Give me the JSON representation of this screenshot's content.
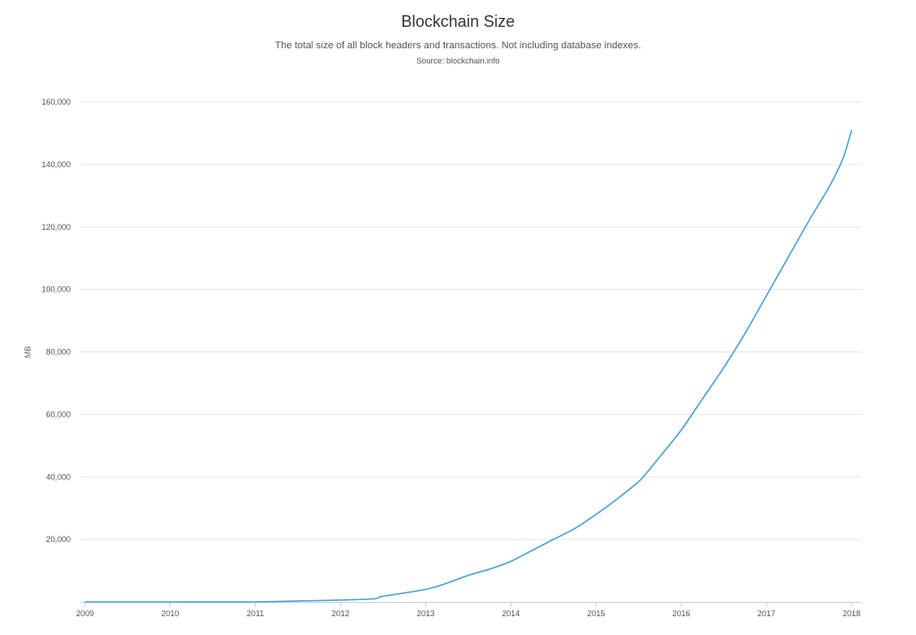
{
  "chart_data": {
    "type": "line",
    "title": "Blockchain Size",
    "subtitle": "The total size of all block headers and transactions. Not including database indexes.",
    "source": "Source: blockchain.info",
    "xlabel": "",
    "ylabel": "MB",
    "xlim": [
      2009.0,
      2018.0
    ],
    "ylim": [
      0,
      160000
    ],
    "grid": true,
    "legend": "none",
    "line_color": "#4aa3d6",
    "y_ticks": [
      {
        "value": 20000,
        "label": "20,000"
      },
      {
        "value": 40000,
        "label": "40,000"
      },
      {
        "value": 60000,
        "label": "60,000"
      },
      {
        "value": 80000,
        "label": "80,000"
      },
      {
        "value": 100000,
        "label": "100,000"
      },
      {
        "value": 120000,
        "label": "120,000"
      },
      {
        "value": 140000,
        "label": "140,000"
      },
      {
        "value": 160000,
        "label": "160,000"
      }
    ],
    "x_ticks": [
      {
        "value": 2009,
        "label": "2009"
      },
      {
        "value": 2010,
        "label": "2010"
      },
      {
        "value": 2011,
        "label": "2011"
      },
      {
        "value": 2012,
        "label": "2012"
      },
      {
        "value": 2013,
        "label": "2013"
      },
      {
        "value": 2014,
        "label": "2014"
      },
      {
        "value": 2015,
        "label": "2015"
      },
      {
        "value": 2016,
        "label": "2016"
      },
      {
        "value": 2017,
        "label": "2017"
      },
      {
        "value": 2018,
        "label": "2018"
      }
    ],
    "x": [
      2009.0,
      2010.0,
      2011.0,
      2011.5,
      2012.0,
      2012.4,
      2012.5,
      2013.0,
      2013.25,
      2013.5,
      2013.75,
      2014.0,
      2014.25,
      2014.5,
      2014.75,
      2015.0,
      2015.25,
      2015.5,
      2015.6,
      2015.75,
      2016.0,
      2016.25,
      2016.5,
      2016.75,
      2017.0,
      2017.25,
      2017.5,
      2017.75,
      2017.9,
      2018.0
    ],
    "y": [
      0,
      0,
      0,
      300,
      600,
      1000,
      1800,
      4000,
      6000,
      8500,
      10500,
      13000,
      16500,
      20000,
      23500,
      28000,
      33000,
      38500,
      41500,
      46500,
      55000,
      65000,
      75000,
      86000,
      98000,
      110000,
      122000,
      133500,
      142000,
      151000
    ]
  }
}
